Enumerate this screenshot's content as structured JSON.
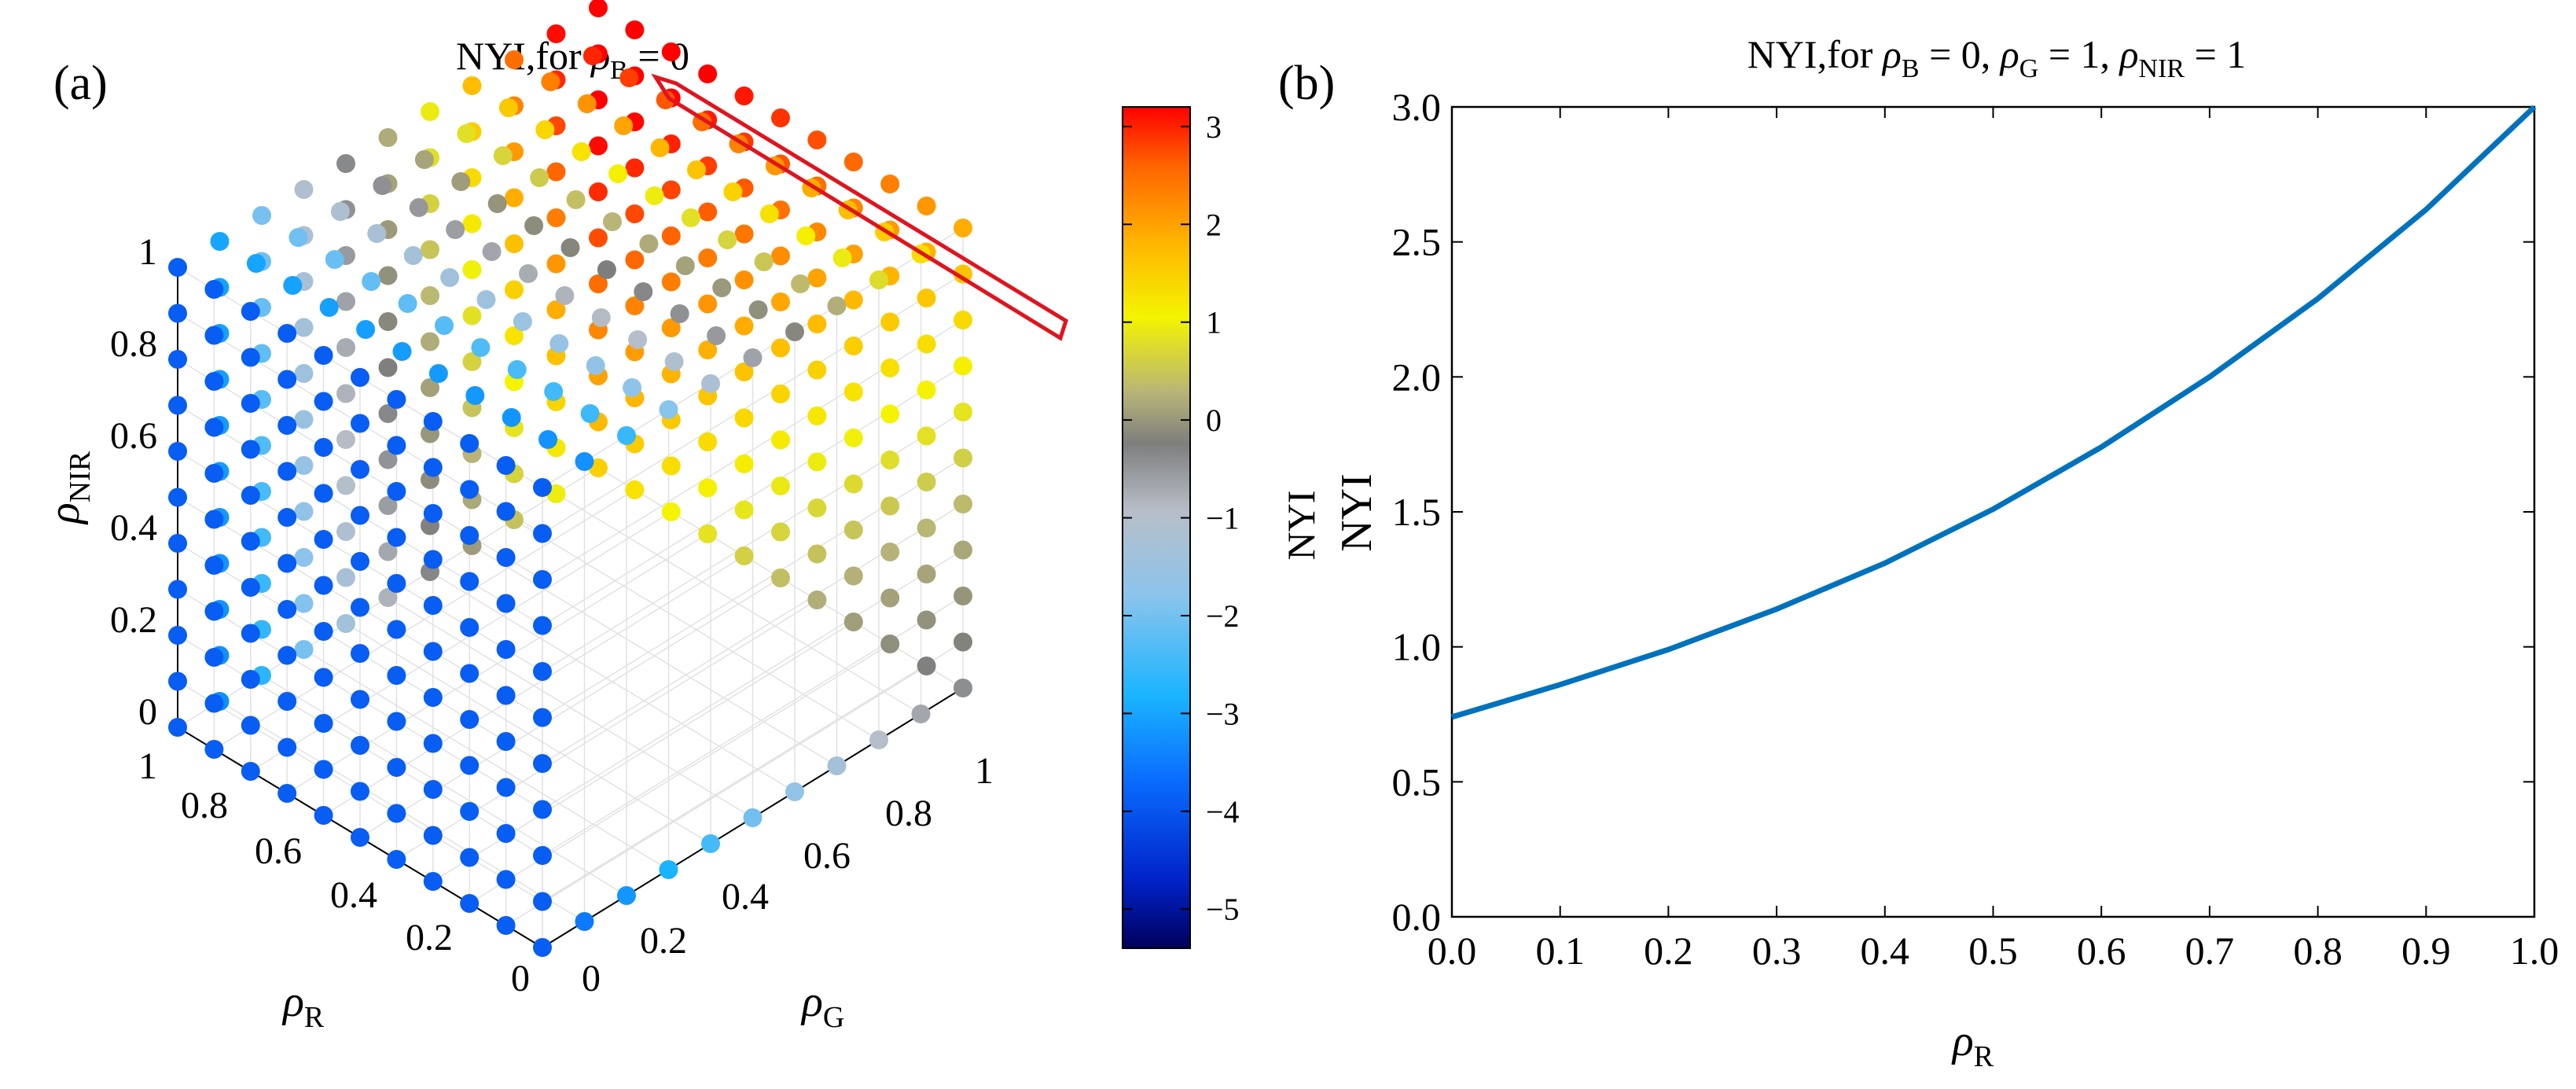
{
  "panel_a": {
    "label": "(a)",
    "title": "NYI,for ρB = 0",
    "title_main": "NYI,for ",
    "title_rho": "ρ",
    "title_sub": "B",
    "title_tail": " = 0",
    "zlabel_rho": "ρ",
    "zlabel_sub": "NIR",
    "xlabel_rho": "ρ",
    "xlabel_sub": "R",
    "ylabel_rho": "ρ",
    "ylabel_sub": "G",
    "z_ticks": [
      "0",
      "0.2",
      "0.4",
      "0.6",
      "0.8",
      "1"
    ],
    "r_ticks": [
      "1",
      "0.8",
      "0.6",
      "0.4",
      "0.2",
      "0"
    ],
    "g_ticks": [
      "0",
      "0.2",
      "0.4",
      "0.6",
      "0.8",
      "1"
    ],
    "colorbar": {
      "label": "NYI",
      "ticks": [
        "3",
        "2",
        "1",
        "0",
        "−1",
        "−2",
        "−3",
        "−4",
        "−5"
      ],
      "range": [
        -5.4,
        3.2
      ],
      "colors": [
        "#00005a",
        "#0022c8",
        "#0a6cff",
        "#1ab4ff",
        "#8cc4ec",
        "#b8bec8",
        "#7e7e7e",
        "#b8b478",
        "#f4f400",
        "#ffb400",
        "#ff6400",
        "#ff0000"
      ]
    },
    "highlight_note": "red box: ρG = 1, ρNIR = 1"
  },
  "chart_data": [
    {
      "type": "scatter",
      "title": "NYI,for ρB = 0",
      "xlabel": "ρR",
      "ylabel": "ρG",
      "zlabel": "ρNIR",
      "colorbar_label": "NYI",
      "grid_x": [
        0,
        0.1,
        0.2,
        0.3,
        0.4,
        0.5,
        0.6,
        0.7,
        0.8,
        0.9,
        1.0
      ],
      "grid_y": [
        0,
        0.1,
        0.2,
        0.3,
        0.4,
        0.5,
        0.6,
        0.7,
        0.8,
        0.9,
        1.0
      ],
      "grid_z": [
        0,
        0.1,
        0.2,
        0.3,
        0.4,
        0.5,
        0.6,
        0.7,
        0.8,
        0.9,
        1.0
      ],
      "visible_faces": [
        "ρR = 1",
        "ρG = 1",
        "ρNIR = 1"
      ],
      "clim": [
        -5.4,
        3.2
      ],
      "highlight": "ρG = 1 and ρNIR = 1 edge (red box)"
    },
    {
      "type": "line",
      "title": "NYI,for ρB = 0, ρG = 1, ρNIR = 1",
      "xlabel": "ρR",
      "ylabel": "NYI",
      "xlim": [
        0,
        1
      ],
      "ylim": [
        0,
        3
      ],
      "x_ticks": [
        "0.0",
        "0.1",
        "0.2",
        "0.3",
        "0.4",
        "0.5",
        "0.6",
        "0.7",
        "0.8",
        "0.9",
        "1.0"
      ],
      "y_ticks": [
        "0.0",
        "0.5",
        "1.0",
        "1.5",
        "2.0",
        "2.5",
        "3.0"
      ],
      "series": [
        {
          "name": "NYI",
          "color": "#0072bd",
          "x": [
            0,
            0.1,
            0.2,
            0.3,
            0.4,
            0.5,
            0.6,
            0.7,
            0.8,
            0.9,
            1.0
          ],
          "y": [
            0.74,
            0.86,
            0.99,
            1.14,
            1.31,
            1.51,
            1.74,
            2.0,
            2.29,
            2.62,
            3.0
          ]
        }
      ]
    }
  ],
  "panel_b": {
    "label": "(b)",
    "title_parts": [
      "NYI,for ",
      "ρ",
      "B",
      " = 0, ",
      "ρ",
      "G",
      " = 1, ",
      "ρ",
      "NIR",
      " = 1"
    ],
    "xlabel_rho": "ρ",
    "xlabel_sub": "R",
    "ylabel": "NYI"
  }
}
